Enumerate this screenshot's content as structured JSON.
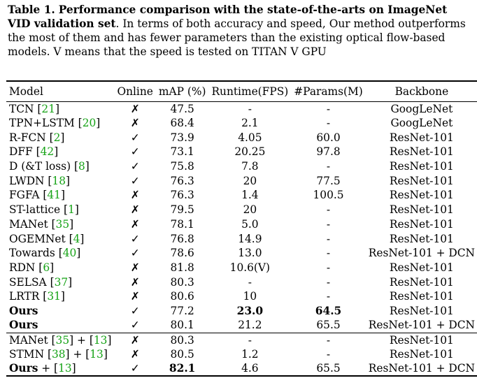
{
  "caption": {
    "label": "Table 1.",
    "title": "Performance comparison with the state-of-the-arts on ImageNet VID validation set",
    "body": ". In terms of both accuracy and speed, Our method outperforms the most of them and has fewer parameters than the existing optical flow-based models. V means that the speed is tested on TITAN V GPU"
  },
  "table": {
    "headers": [
      "Model",
      "Online",
      "mAP (%)",
      "Runtime(FPS)",
      "#Params(M)",
      "Backbone"
    ],
    "group1": [
      {
        "name": "TCN",
        "ref": "21",
        "online": "✗",
        "map": "47.5",
        "runtime": "-",
        "params": "-",
        "backbone": "GoogLeNet"
      },
      {
        "name": "TPN+LSTM",
        "ref": "20",
        "online": "✗",
        "map": "68.4",
        "runtime": "2.1",
        "params": "-",
        "backbone": "GoogLeNet"
      },
      {
        "name": "R-FCN",
        "ref": "2",
        "online": "✓",
        "map": "73.9",
        "runtime": "4.05",
        "params": "60.0",
        "backbone": "ResNet-101"
      },
      {
        "name": "DFF",
        "ref": "42",
        "online": "✓",
        "map": "73.1",
        "runtime": "20.25",
        "params": "97.8",
        "backbone": "ResNet-101"
      },
      {
        "name": "D (&T loss)",
        "ref": "8",
        "online": "✓",
        "map": "75.8",
        "runtime": "7.8",
        "params": "-",
        "backbone": "ResNet-101"
      },
      {
        "name": "LWDN",
        "ref": "18",
        "online": "✓",
        "map": "76.3",
        "runtime": "20",
        "params": "77.5",
        "backbone": "ResNet-101"
      },
      {
        "name": "FGFA",
        "ref": "41",
        "online": "✗",
        "map": "76.3",
        "runtime": "1.4",
        "params": "100.5",
        "backbone": "ResNet-101"
      },
      {
        "name": "ST-lattice",
        "ref": "1",
        "online": "✗",
        "map": "79.5",
        "runtime": "20",
        "params": "-",
        "backbone": "ResNet-101"
      },
      {
        "name": "MANet",
        "ref": "35",
        "online": "✗",
        "map": "78.1",
        "runtime": "5.0",
        "params": "-",
        "backbone": "ResNet-101"
      },
      {
        "name": "OGEMNet",
        "ref": "4",
        "online": "✓",
        "map": "76.8",
        "runtime": "14.9",
        "params": "-",
        "backbone": "ResNet-101"
      },
      {
        "name": "Towards",
        "ref": "40",
        "online": "✓",
        "map": "78.6",
        "runtime": "13.0",
        "params": "-",
        "backbone": "ResNet-101 + DCN"
      },
      {
        "name": "RDN",
        "ref": "6",
        "online": "✗",
        "map": "81.8",
        "runtime": "10.6(V)",
        "params": "-",
        "backbone": "ResNet-101"
      },
      {
        "name": "SELSA",
        "ref": "37",
        "online": "✗",
        "map": "80.3",
        "runtime": "-",
        "params": "-",
        "backbone": "ResNet-101"
      },
      {
        "name": "LRTR",
        "ref": "31",
        "online": "✗",
        "map": "80.6",
        "runtime": "10",
        "params": "-",
        "backbone": "ResNet-101"
      }
    ],
    "ours1": {
      "name": "Ours",
      "online": "✓",
      "map": "77.2",
      "runtime": "23.0",
      "params": "64.5",
      "backbone": "ResNet-101"
    },
    "ours2": {
      "name": "Ours",
      "online": "✓",
      "map": "80.1",
      "runtime": "21.2",
      "params": "65.5",
      "backbone": "ResNet-101 + DCN"
    },
    "group2": [
      {
        "name": "MANet",
        "ref1": "35",
        "ref2": "13",
        "online": "✗",
        "map": "80.3",
        "runtime": "-",
        "params": "-",
        "backbone": "ResNet-101"
      },
      {
        "name": "STMN",
        "ref1": "38",
        "ref2": "13",
        "online": "✗",
        "map": "80.5",
        "runtime": "1.2",
        "params": "-",
        "backbone": "ResNet-101"
      }
    ],
    "ours3": {
      "name": "Ours",
      "ref": "13",
      "online": "✓",
      "map": "82.1",
      "runtime": "4.6",
      "params": "65.5",
      "backbone": "ResNet-101 + DCN"
    }
  }
}
